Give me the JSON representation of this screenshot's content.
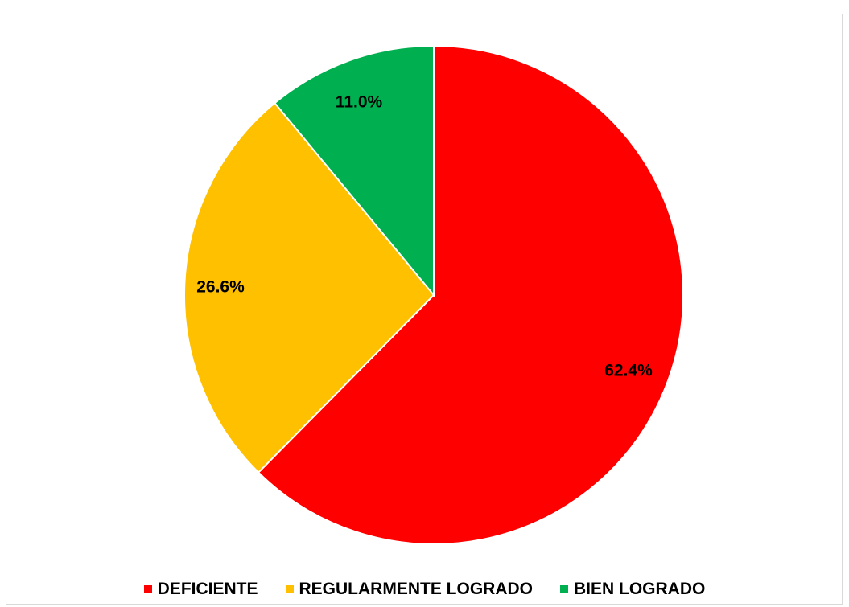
{
  "chart_data": {
    "type": "pie",
    "title": "",
    "categories": [
      "DEFICIENTE",
      "REGULARMENTE LOGRADO",
      "BIEN LOGRADO"
    ],
    "values": [
      62.4,
      26.6,
      11.0
    ],
    "labels": [
      "62.4%",
      "26.6%",
      "11.0%"
    ],
    "colors": [
      "#ff0000",
      "#ffc000",
      "#00b050"
    ],
    "legend_position": "bottom",
    "start_angle": "12 o'clock",
    "direction": "clockwise"
  },
  "legend": {
    "items": [
      {
        "label": "DEFICIENTE",
        "color": "#ff0000"
      },
      {
        "label": "REGULARMENTE LOGRADO",
        "color": "#ffc000"
      },
      {
        "label": "BIEN LOGRADO",
        "color": "#00b050"
      }
    ]
  }
}
